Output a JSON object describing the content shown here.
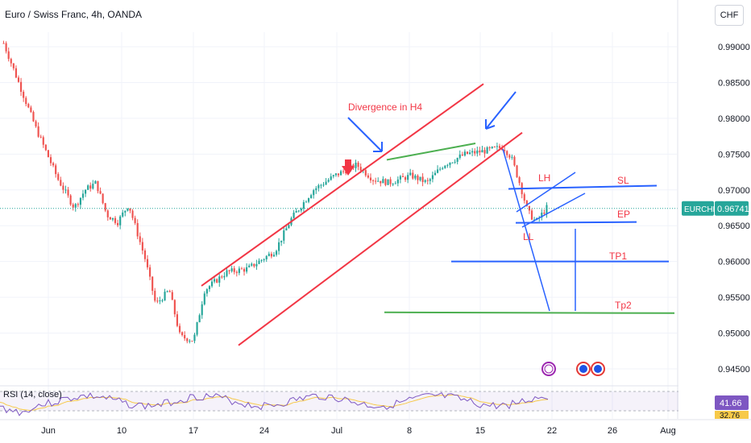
{
  "header": {
    "title": "Euro / Swiss Franc, 4h, OANDA",
    "currency_button": "CHF"
  },
  "colors": {
    "up": "#26a69a",
    "down": "#ef5350",
    "channel": "#f23645",
    "blue": "#2962ff",
    "green": "#4caf50",
    "rsi": "#7e57c2"
  },
  "chart_data": {
    "type": "candlestick",
    "symbol": "EURCHF",
    "timeframe": "4h",
    "y_axis": {
      "ticks": [
        "0.99000",
        "0.98500",
        "0.98000",
        "0.97500",
        "0.97000",
        "0.96500",
        "0.96000",
        "0.95500",
        "0.95000",
        "0.94500"
      ],
      "range": [
        0.9435,
        0.9925
      ]
    },
    "x_axis": {
      "ticks": [
        "Jun",
        "10",
        "17",
        "24",
        "Jul",
        "8",
        "15",
        "22",
        "26",
        "Aug"
      ]
    },
    "price_path": [
      [
        0,
        0.9905
      ],
      [
        0.06,
        0.9845
      ],
      [
        0.12,
        0.9785
      ],
      [
        0.2,
        0.9715
      ],
      [
        0.26,
        0.9675
      ],
      [
        0.3,
        0.97
      ],
      [
        0.34,
        0.971
      ],
      [
        0.38,
        0.9665
      ],
      [
        0.42,
        0.9655
      ],
      [
        0.46,
        0.968
      ],
      [
        0.52,
        0.9605
      ],
      [
        0.56,
        0.954
      ],
      [
        0.61,
        0.956
      ],
      [
        0.65,
        0.9495
      ],
      [
        0.7,
        0.949
      ],
      [
        0.74,
        0.956
      ],
      [
        0.82,
        0.9585
      ],
      [
        0.9,
        0.959
      ],
      [
        1.0,
        0.9615
      ],
      [
        1.06,
        0.966
      ],
      [
        1.14,
        0.97
      ],
      [
        1.22,
        0.972
      ],
      [
        1.3,
        0.9735
      ],
      [
        1.36,
        0.9715
      ],
      [
        1.42,
        0.971
      ],
      [
        1.5,
        0.972
      ],
      [
        1.56,
        0.971
      ],
      [
        1.62,
        0.9735
      ],
      [
        1.7,
        0.975
      ],
      [
        1.78,
        0.9755
      ],
      [
        1.84,
        0.976
      ],
      [
        1.87,
        0.9745
      ],
      [
        1.9,
        0.971
      ],
      [
        1.93,
        0.967
      ],
      [
        1.96,
        0.9655
      ],
      [
        2.0,
        0.9675
      ]
    ],
    "current_price": {
      "symbol": "EURCHF",
      "value": "0.96741",
      "price": 0.96741
    },
    "rsi": {
      "label": "RSI (14, close)",
      "value": "41.66",
      "ma_value": "32.76"
    },
    "annotations": {
      "divergence": "Divergence in H4",
      "lh": "LH",
      "ll": "LL",
      "sl": "SL",
      "ep": "EP",
      "tp1": "TP1",
      "tp2": "Tp2"
    },
    "levels": {
      "sl": 0.9706,
      "ep": 0.9654,
      "tp1": 0.96,
      "tp2": 0.9529
    }
  }
}
